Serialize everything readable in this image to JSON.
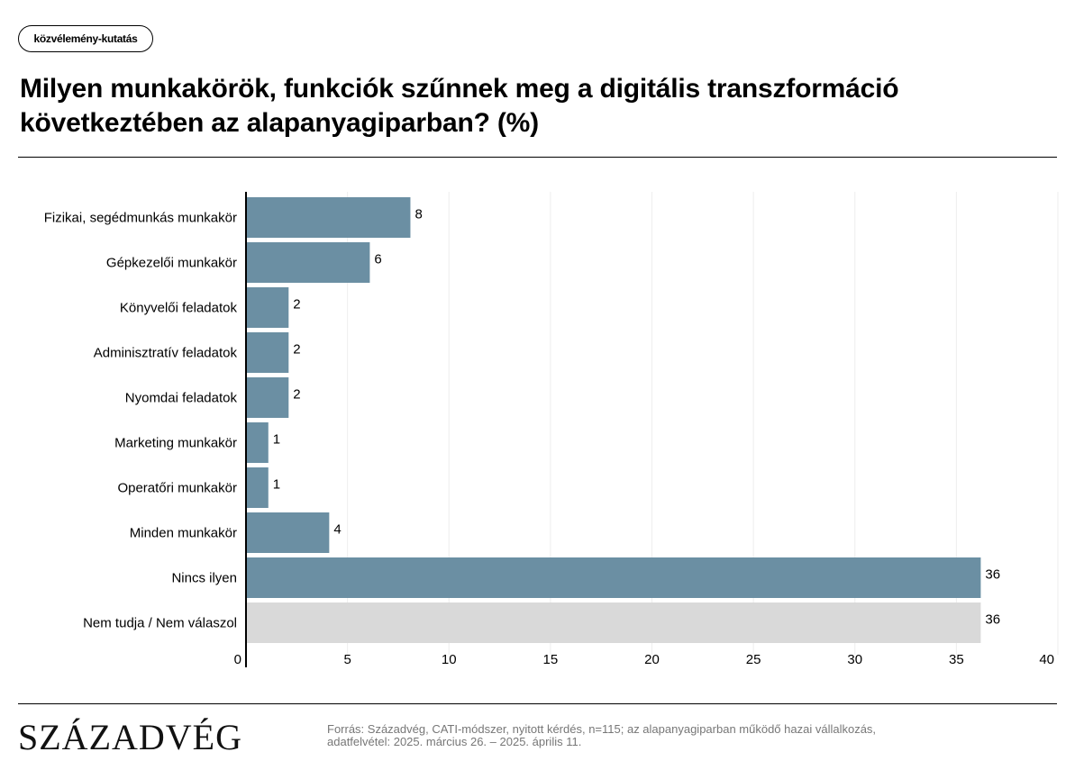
{
  "tag": "közvélemény-kutatás",
  "title_line1": "Milyen munkakörök, funkciók szűnnek meg a digitális transzformáció",
  "title_line2": "következtében az alapanyagiparban? (%)",
  "brand": "SZÁZADVÉG",
  "source_line1": "Forrás: Századvég, CATI-módszer, nyitott kérdés, n=115; az alapanyagiparban működő hazai vállalkozás,",
  "source_line2": "adatfelvétel: 2025. március 26. – 2025. április 11.",
  "colors": {
    "bar": "#6b8fa3",
    "bar_na": "#d9d9d9",
    "grid": "#eeeeee"
  },
  "chart_data": {
    "type": "bar",
    "orientation": "horizontal",
    "categories": [
      "Fizikai, segédmunkás munkakör",
      "Gépkezelői munkakör",
      "Könyvelői feladatok",
      "Adminisztratív feladatok",
      "Nyomdai feladatok",
      "Marketing munkakör",
      "Operatőri munkakör",
      "Minden munkakör",
      "Nincs ilyen",
      "Nem tudja / Nem válaszol"
    ],
    "values": [
      8.1,
      6.1,
      2.1,
      2.1,
      2.1,
      1.1,
      1.1,
      4.1,
      36.2,
      36.2
    ],
    "labels": [
      "8",
      "6",
      "2",
      "2",
      "2",
      "1",
      "1",
      "4",
      "36",
      "36"
    ],
    "bar_colors": [
      "bar",
      "bar",
      "bar",
      "bar",
      "bar",
      "bar",
      "bar",
      "bar",
      "bar",
      "bar_na"
    ],
    "xlim": [
      0,
      40
    ],
    "xticks": [
      0,
      5,
      10,
      15,
      20,
      25,
      30,
      35,
      40
    ],
    "grid": true
  }
}
